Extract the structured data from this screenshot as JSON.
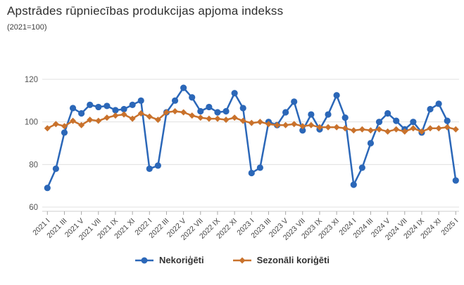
{
  "header": {
    "title": "Apstrādes rūpniecības produkcijas apjoma indekss",
    "subtitle": "(2021=100)"
  },
  "chart_data": {
    "type": "line",
    "title": "Apstrādes rūpniecības produkcijas apjoma indekss",
    "subtitle": "(2021=100)",
    "xlabel": "",
    "ylabel": "",
    "ylim": [
      60,
      125
    ],
    "yticks": [
      60,
      80,
      100,
      120
    ],
    "grid": true,
    "legend_position": "bottom",
    "x_tick_step": 2,
    "categories": [
      "2021 I",
      "2021 II",
      "2021 III",
      "2021 IV",
      "2021 V",
      "2021 VI",
      "2021 VII",
      "2021 VIII",
      "2021 IX",
      "2021 X",
      "2021 XI",
      "2021 XII",
      "2022 I",
      "2022 II",
      "2022 III",
      "2022 IV",
      "2022 V",
      "2022 VI",
      "2022 VII",
      "2022 VIII",
      "2022 IX",
      "2022 X",
      "2022 XI",
      "2022 XII",
      "2023 I",
      "2023 II",
      "2023 III",
      "2023 IV",
      "2023 V",
      "2023 VI",
      "2023 VII",
      "2023 VIII",
      "2023 IX",
      "2023 X",
      "2023 XI",
      "2023 XII",
      "2024 I",
      "2024 II",
      "2024 III",
      "2024 IV",
      "2024 V",
      "2024 VI",
      "2024 VII",
      "2024 VIII",
      "2024 IX",
      "2024 X",
      "2024 XI",
      "2024 XII",
      "2025 I"
    ],
    "series": [
      {
        "name": "Nekoriģēti",
        "color": "#2b67b8",
        "marker": "circle",
        "values": [
          69,
          78,
          95,
          106.5,
          104,
          108,
          107,
          107.5,
          105.5,
          106,
          108,
          110,
          78,
          79.5,
          104.5,
          110,
          116,
          111.5,
          105,
          107,
          104.5,
          105,
          113.5,
          106.5,
          76,
          78.5,
          100,
          98.5,
          104.5,
          109.5,
          96,
          103.5,
          96.5,
          103.5,
          112.5,
          102,
          70.5,
          78.5,
          90,
          100,
          104,
          100.5,
          96.5,
          100,
          95,
          106,
          108.5,
          100.5,
          72.5
        ]
      },
      {
        "name": "Sezonāli koriģēti",
        "color": "#c9722c",
        "marker": "diamond",
        "values": [
          97,
          99,
          98,
          100.5,
          98.5,
          101,
          100.5,
          102,
          103,
          103.5,
          101.5,
          104,
          102.5,
          101,
          104.5,
          105,
          104.5,
          103,
          102,
          101.5,
          101.5,
          101,
          102,
          100.5,
          99.5,
          100,
          99,
          98.5,
          98.5,
          99,
          98,
          98.5,
          97.5,
          97.5,
          97.5,
          97,
          96,
          96.5,
          96,
          96.5,
          95.5,
          96.5,
          95.5,
          97,
          95.5,
          97,
          97,
          97.5,
          96.5
        ]
      }
    ],
    "colors": {
      "gridline": "#e0e0e0",
      "axis_line": "#cccccc",
      "tick_mark": "#aaaaaa",
      "tick_label": "#444444",
      "y_label": "#555555"
    }
  }
}
